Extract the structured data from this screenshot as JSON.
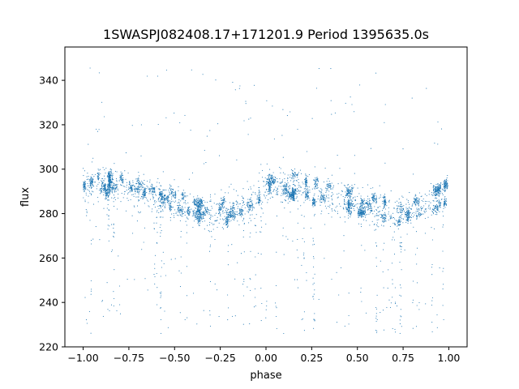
{
  "chart_data": {
    "type": "scatter",
    "title": "1SWASPJ082408.17+171201.9 Period 1395635.0s",
    "xlabel": "phase",
    "ylabel": "flux",
    "xlim": [
      -1.1,
      1.1
    ],
    "ylim": [
      220,
      355
    ],
    "grid": false,
    "legend": "none",
    "x_ticks": [
      -1.0,
      -0.75,
      -0.5,
      -0.25,
      0.0,
      0.25,
      0.5,
      0.75,
      1.0
    ],
    "x_tick_labels": [
      "−1.00",
      "−0.75",
      "−0.50",
      "−0.25",
      "0.00",
      "0.25",
      "0.50",
      "0.75",
      "1.00"
    ],
    "y_ticks": [
      220,
      240,
      260,
      280,
      300,
      320,
      340
    ],
    "y_tick_labels": [
      "220",
      "240",
      "260",
      "280",
      "300",
      "320",
      "340"
    ],
    "series": [
      {
        "color": "#1f77b4",
        "marker": "point",
        "x_range": [
          -1.0,
          1.0
        ],
        "trend": {
          "phase": [
            -1.0,
            -0.9,
            -0.8,
            -0.7,
            -0.6,
            -0.5,
            -0.4,
            -0.3,
            -0.2,
            -0.1,
            0.0,
            0.1,
            0.2,
            0.3,
            0.4,
            0.5,
            0.6,
            0.7,
            0.8,
            0.9,
            1.0
          ],
          "flux": [
            293,
            293,
            292,
            289,
            287,
            285,
            282,
            280,
            281,
            285,
            291,
            293,
            292,
            289,
            287,
            285,
            282,
            280,
            281,
            285,
            291
          ]
        },
        "core_scatter": 6,
        "outlier_range": [
          226,
          347
        ]
      }
    ]
  }
}
